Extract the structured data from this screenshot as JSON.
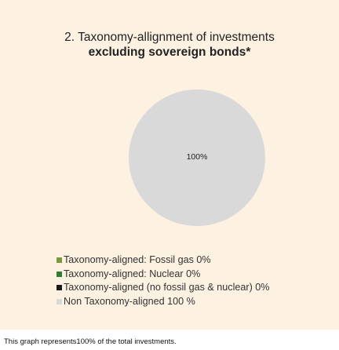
{
  "title_line1": "2. Taxonomy-allignment of investments",
  "title_line2": "excluding sovereign bonds*",
  "chart_data": {
    "type": "pie",
    "slices": [
      {
        "label": "Taxonomy-aligned: Fossil gas 0%",
        "value": 0,
        "color": "#7a9a3c"
      },
      {
        "label": "Taxonomy-aligned: Nuclear 0%",
        "value": 0,
        "color": "#2e7d32"
      },
      {
        "label": "Taxonomy-aligned (no fossil gas & nuclear) 0%",
        "value": 0,
        "color": "#1b1b1b"
      },
      {
        "label": "Non Taxonomy-aligned 100 %",
        "value": 100,
        "color": "#d9d9d9"
      }
    ],
    "data_label": "100%",
    "legend_position": "bottom-left"
  },
  "footnote": "This graph represents100% of the total investments."
}
